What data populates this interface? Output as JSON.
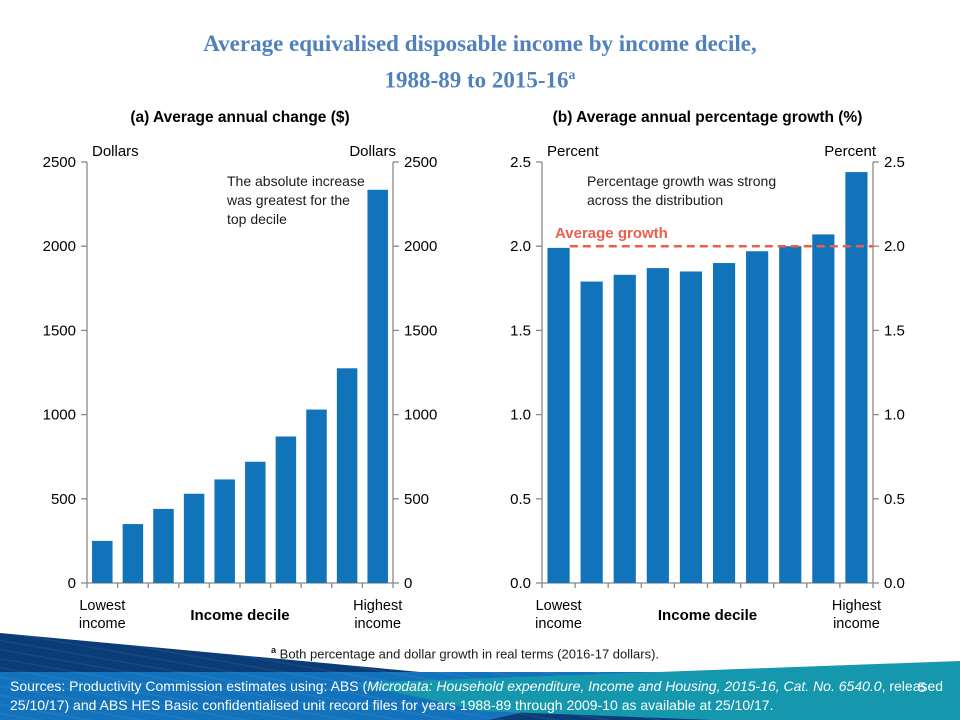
{
  "title": {
    "line1": "Average equivalised disposable income by income decile,",
    "line2": "1988-89 to 2015-16",
    "superscript": "a"
  },
  "colors": {
    "title_blue": "#4f81bd",
    "bar_blue": "#1173b9",
    "accent_red": "#e8604c",
    "axis_gray": "#898989",
    "text_black": "#1a1a1a",
    "footer_navy": "#0a3c78",
    "footer_blue": "#1272bc",
    "footer_teal": "#1598ae"
  },
  "chart_data": [
    {
      "id": "dollars",
      "type": "bar",
      "title": "(a) Average annual change ($)",
      "unit_left": "Dollars",
      "unit_right": "Dollars",
      "ylabel": "Dollars",
      "ylim": [
        0,
        2500
      ],
      "y_ticks": [
        "0",
        "500",
        "1000",
        "1500",
        "2000",
        "2500"
      ],
      "grid": false,
      "categories": [
        "Decile 1 (lowest income)",
        "Decile 2",
        "Decile 3",
        "Decile 4",
        "Decile 5",
        "Decile 6",
        "Decile 7",
        "Decile 8",
        "Decile 9",
        "Decile 10 (highest income)"
      ],
      "values": [
        250,
        350,
        440,
        530,
        615,
        720,
        870,
        1030,
        1275,
        2335
      ],
      "annotation": [
        "The absolute increase",
        "was greatest for the",
        "top decile"
      ],
      "x_axis": {
        "left": [
          "Lowest",
          "income"
        ],
        "center": "Income decile",
        "right": [
          "Highest",
          "income"
        ]
      }
    },
    {
      "id": "percent",
      "type": "bar",
      "title": "(b) Average annual percentage growth (%)",
      "unit_left": "Percent",
      "unit_right": "Percent",
      "ylabel": "Percent",
      "ylim": [
        0,
        2.5
      ],
      "y_ticks": [
        "0.0",
        "0.5",
        "1.0",
        "1.5",
        "2.0",
        "2.5"
      ],
      "grid": false,
      "categories": [
        "Decile 1 (lowest income)",
        "Decile 2",
        "Decile 3",
        "Decile 4",
        "Decile 5",
        "Decile 6",
        "Decile 7",
        "Decile 8",
        "Decile 9",
        "Decile 10 (highest income)"
      ],
      "values": [
        1.99,
        1.79,
        1.83,
        1.87,
        1.85,
        1.9,
        1.97,
        2.0,
        2.07,
        2.44
      ],
      "annotation": [
        "Percentage growth was strong",
        "across the distribution"
      ],
      "average_line": {
        "label": "Average growth",
        "value": 2.0
      },
      "x_axis": {
        "left": [
          "Lowest",
          "income"
        ],
        "center": "Income decile",
        "right": [
          "Highest",
          "income"
        ]
      }
    }
  ],
  "footnote": {
    "marker": "a",
    "text": "Both percentage and dollar growth in real terms (2016-17 dollars)."
  },
  "footer": {
    "sources_prefix": "Sources: Productivity Commission estimates using: ABS (",
    "sources_italic": "Microdata: Household expenditure, Income and Housing, 2015-16, Cat. No. 6540.0",
    "sources_suffix": ", released 25/10/17) and ABS HES Basic confidentialised unit record files for years 1988-89 through 2009-10 as available at 25/10/17.",
    "page_number": "5"
  }
}
